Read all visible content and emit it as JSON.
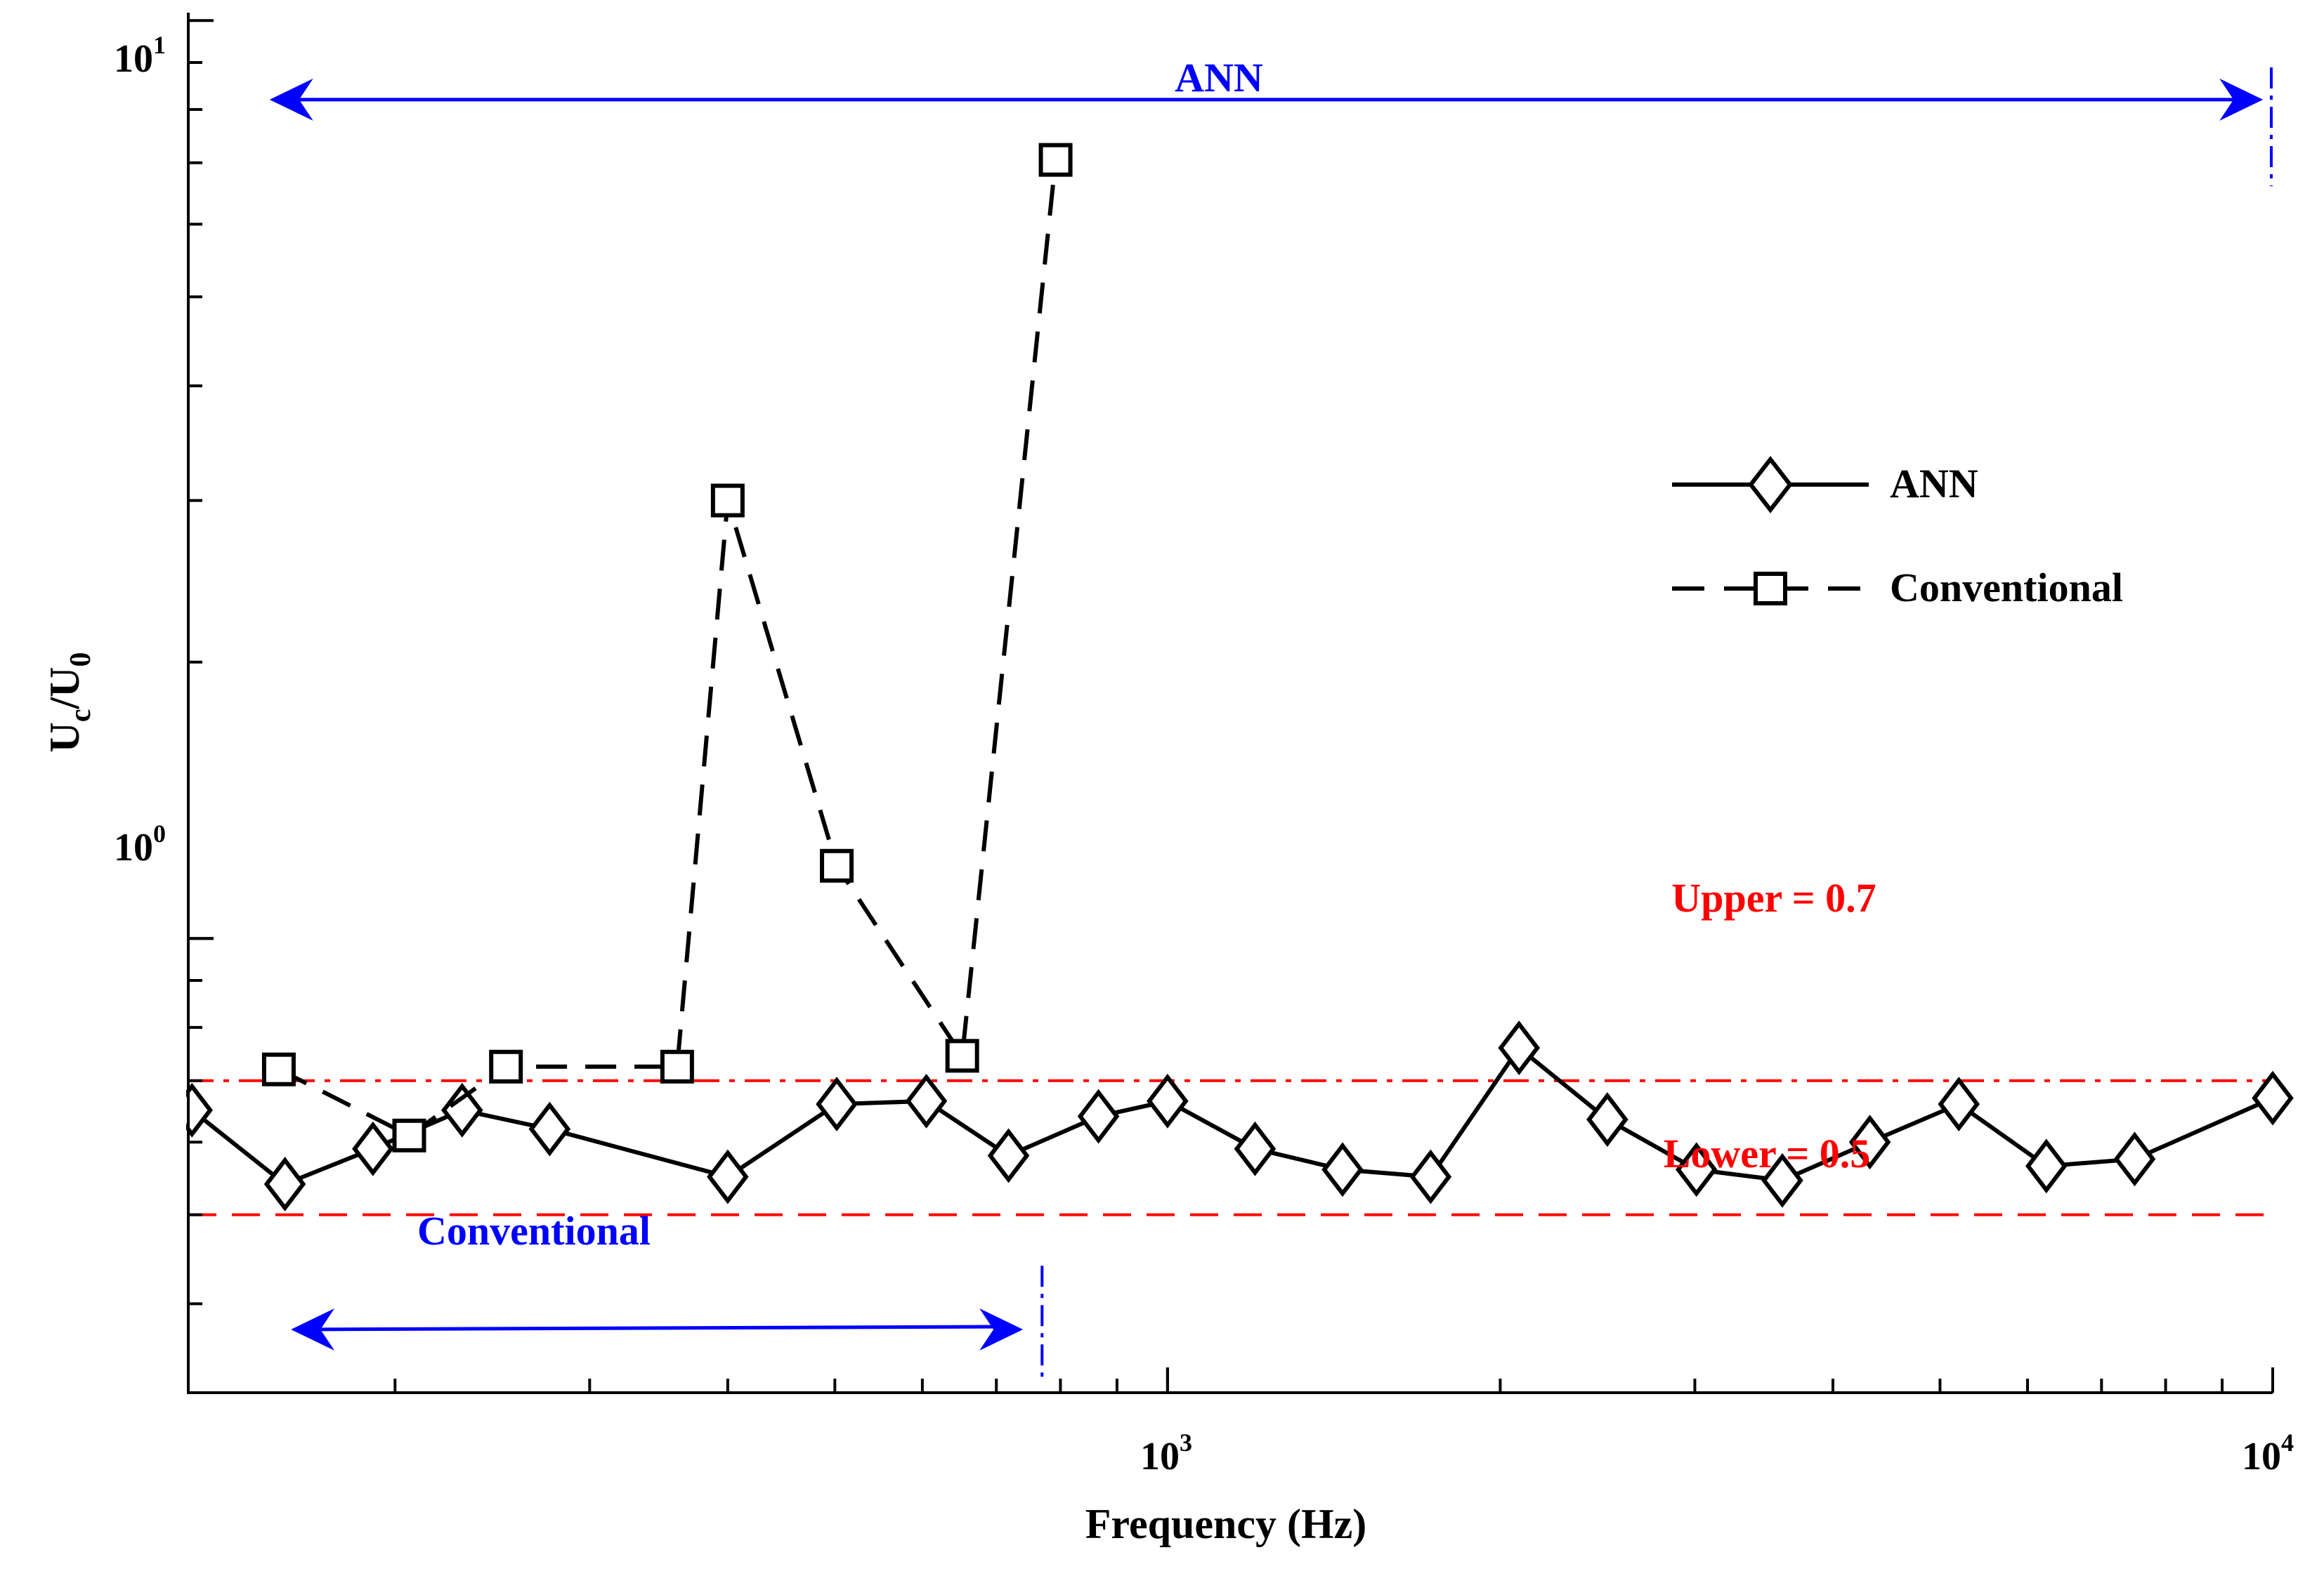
{
  "chart_data": {
    "type": "line",
    "xscale": "log",
    "yscale": "log",
    "xlabel": "Frequency (Hz)",
    "ylabel_main": "U",
    "ylabel_sub1": "c",
    "ylabel_slash": "/U",
    "ylabel_sub2": "0",
    "xlim": [
      130,
      10000
    ],
    "ylim": [
      0.32,
      10.2
    ],
    "x_ticks": [
      {
        "base": "10",
        "exp": "3",
        "value": 1000
      },
      {
        "base": "10",
        "exp": "4",
        "value": 10000
      }
    ],
    "y_ticks": [
      {
        "base": "10",
        "exp": "0",
        "value": 1
      },
      {
        "base": "10",
        "exp": "1",
        "value": 10
      }
    ],
    "series": [
      {
        "name": "ANN",
        "style": "solid",
        "marker": "diamond",
        "color": "#000000",
        "points": [
          [
            131,
            0.65
          ],
          [
            159,
            0.54
          ],
          [
            191,
            0.59
          ],
          [
            230,
            0.65
          ],
          [
            276,
            0.62
          ],
          [
            400,
            0.55
          ],
          [
            502,
            0.66
          ],
          [
            605,
            0.665
          ],
          [
            718,
            0.58
          ],
          [
            866,
            0.64
          ],
          [
            1000,
            0.665
          ],
          [
            1200,
            0.59
          ],
          [
            1440,
            0.56
          ],
          [
            1730,
            0.55
          ],
          [
            2080,
            0.76
          ],
          [
            2500,
            0.635
          ],
          [
            3010,
            0.56
          ],
          [
            3600,
            0.545
          ],
          [
            4320,
            0.6
          ],
          [
            5200,
            0.66
          ],
          [
            6240,
            0.565
          ],
          [
            7500,
            0.575
          ],
          [
            10000,
            0.67
          ]
        ]
      },
      {
        "name": "Conventional",
        "style": "dashed",
        "marker": "square",
        "color": "#000000",
        "points": [
          [
            157,
            0.72
          ],
          [
            206,
            0.61
          ],
          [
            252,
            0.725
          ],
          [
            360,
            0.725
          ],
          [
            400,
            3.0
          ],
          [
            502,
            1.2
          ],
          [
            652,
            0.745
          ],
          [
            792,
            7.05
          ]
        ]
      }
    ],
    "reference_lines": [
      {
        "label": "Upper = 0.7",
        "y": 0.7,
        "style": "dashdot",
        "color": "#ff0000"
      },
      {
        "label": "Lower = 0.5",
        "y": 0.5,
        "style": "dashed",
        "color": "#ff0000"
      }
    ],
    "range_annotations": [
      {
        "label": "ANN",
        "x_start": 154,
        "x_end": 9800,
        "y": 8.2,
        "boundary_x": 9970,
        "color": "#0000ff"
      },
      {
        "label": "Conventional",
        "x_start": 161,
        "x_end": 740,
        "y": 0.375,
        "boundary_x": 770,
        "color": "#0000ff"
      }
    ],
    "legend": {
      "position": "right",
      "entries": [
        "ANN",
        "Conventional"
      ]
    }
  }
}
